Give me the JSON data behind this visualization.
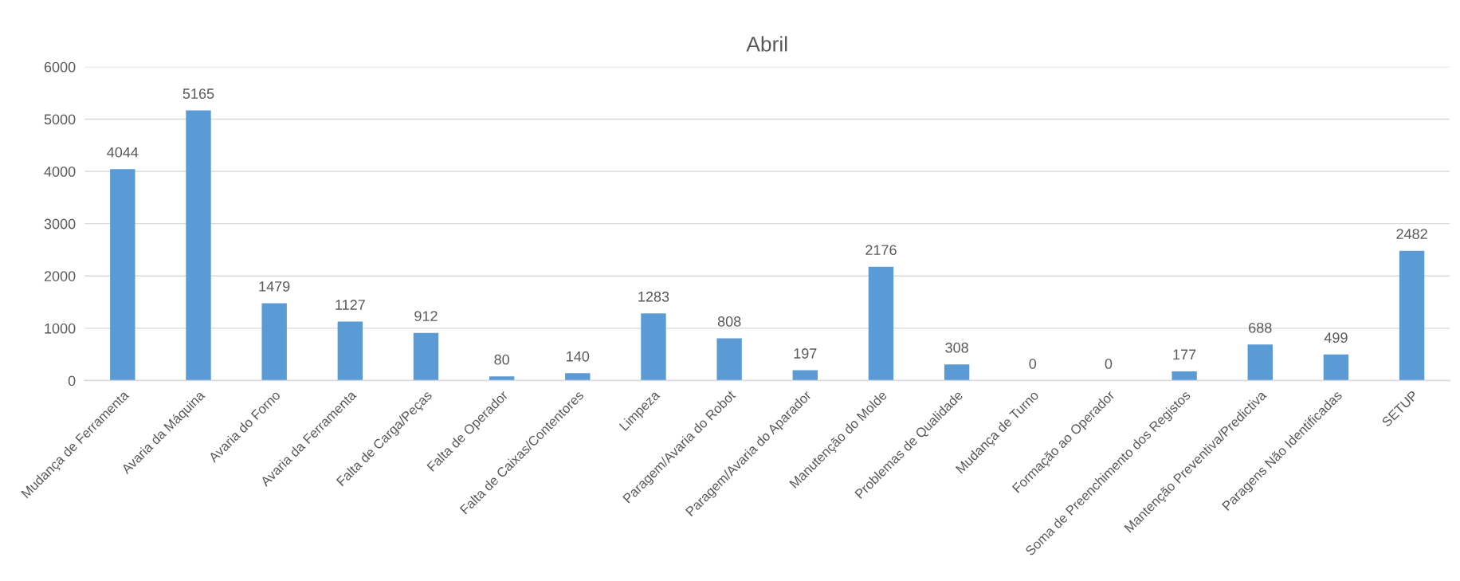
{
  "chart_data": {
    "type": "bar",
    "title": "Abril",
    "categories": [
      "Mudança de Ferramenta",
      "Avaria da Máquina",
      "Avaria do Forno",
      "Avaria da Ferramenta",
      "Falta de Carga/Peças",
      "Falta de Operador",
      "Falta de Caixas/Contentores",
      "Limpeza",
      "Paragem/Avaria do Robot",
      "Paragem/Avaria do Aparador",
      "Manutenção do Molde",
      "Problemas de Qualidade",
      "Mudança de Turno",
      "Formação ao Operador",
      "Soma de Preenchimento dos Registos",
      "Mantenção Preventiva/Predictiva",
      "Paragens Não Identificadas",
      "SETUP"
    ],
    "values": [
      4044,
      5165,
      1479,
      1127,
      912,
      80,
      140,
      1283,
      808,
      197,
      2176,
      308,
      0,
      0,
      177,
      688,
      499,
      2482
    ],
    "color": "#5b9bd5",
    "ylim": [
      0,
      6000
    ],
    "yticks": [
      0,
      1000,
      2000,
      3000,
      4000,
      5000,
      6000
    ],
    "grid": "y",
    "data_labels": true
  }
}
